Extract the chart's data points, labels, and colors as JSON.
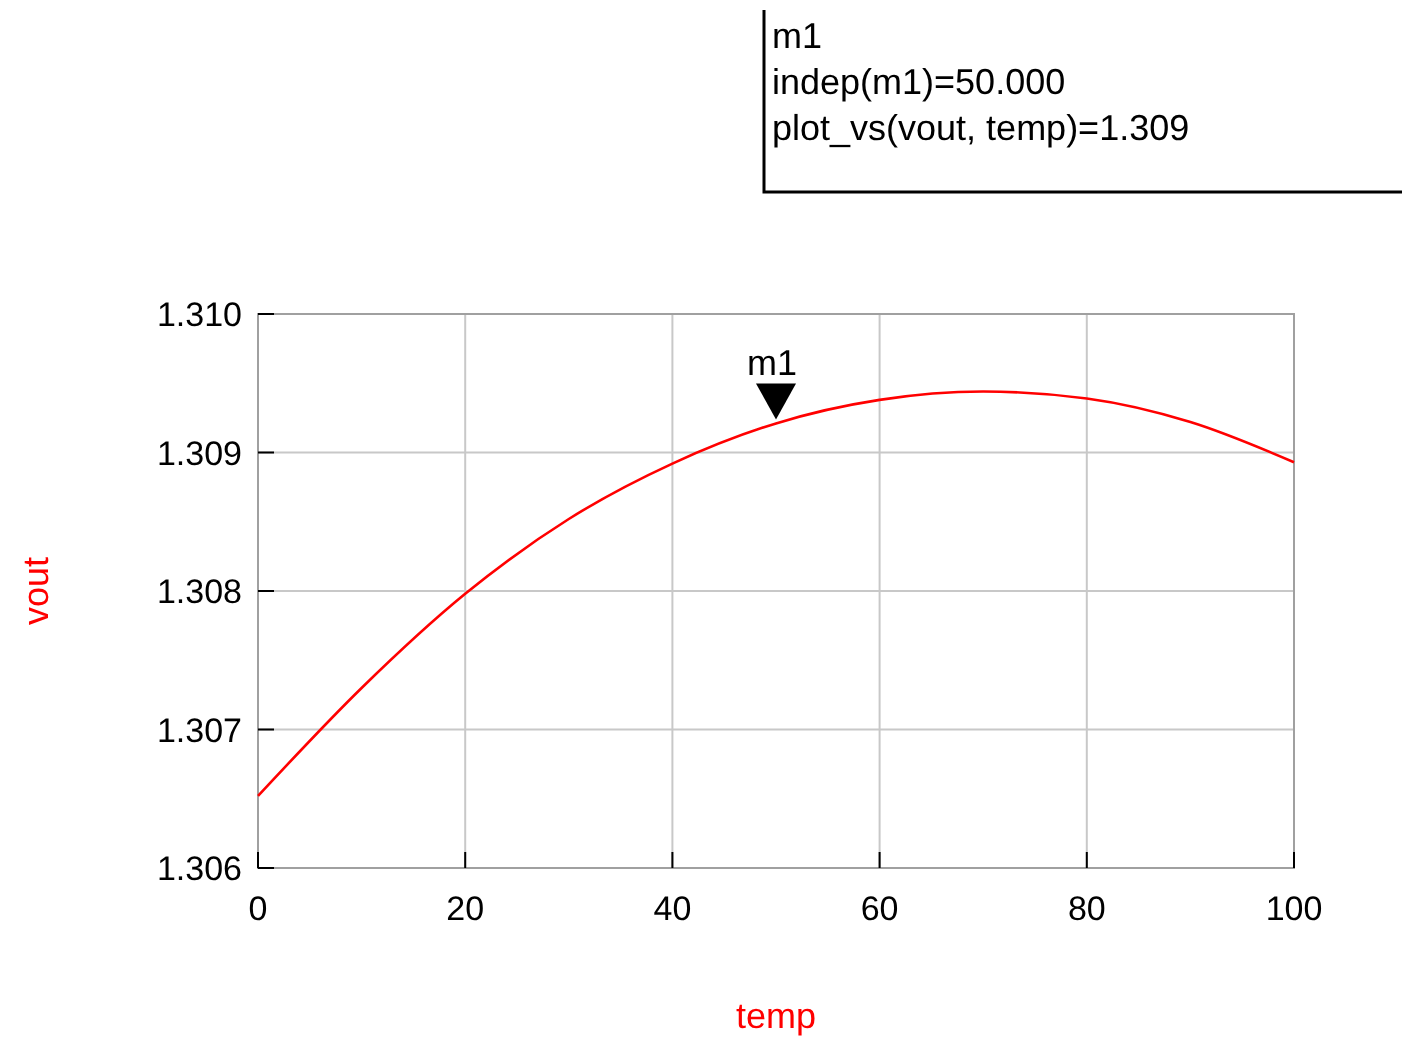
{
  "chart_data": {
    "type": "line",
    "xlabel": "temp",
    "ylabel": "vout",
    "x": [
      0,
      10,
      20,
      30,
      40,
      50,
      60,
      70,
      80,
      90,
      100
    ],
    "series": [
      {
        "color": "#ff0000",
        "values": [
          1.30652,
          1.3073,
          1.30798,
          1.30852,
          1.30892,
          1.30921,
          1.30938,
          1.30944,
          1.30939,
          1.30922,
          1.30893
        ]
      }
    ],
    "xlim": [
      0,
      100
    ],
    "xticks": [
      0,
      20,
      40,
      60,
      80,
      100
    ],
    "ylim": [
      1.306,
      1.31
    ],
    "yticks": [
      {
        "value": 1.306,
        "label": "1.306"
      },
      {
        "value": 1.307,
        "label": "1.307"
      },
      {
        "value": 1.308,
        "label": "1.308"
      },
      {
        "value": 1.309,
        "label": "1.309"
      },
      {
        "value": 1.31,
        "label": "1.310"
      }
    ],
    "grid": true,
    "marker": "none",
    "line_style": "solid",
    "annotations": [
      {
        "text": "m1",
        "x": 50,
        "y": 1.30921
      },
      "m1\nindep(m1)=50.000\nplot_vs(vout, temp)=1.309"
    ]
  }
}
